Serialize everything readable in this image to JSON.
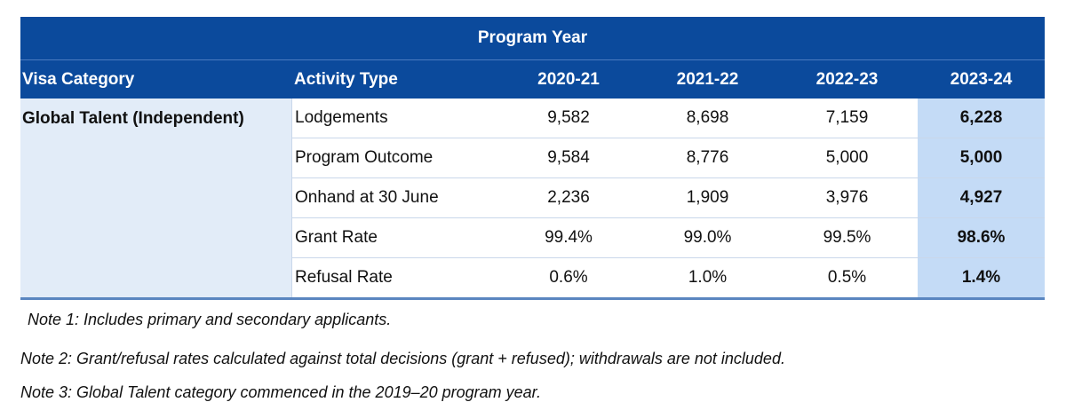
{
  "table": {
    "super_header": "Program Year",
    "headers": {
      "category": "Visa Category",
      "activity": "Activity Type",
      "years": [
        "2020-21",
        "2021-22",
        "2022-23",
        "2023-24"
      ]
    },
    "category": "Global Talent (Independent)",
    "rows": [
      {
        "activity": "Lodgements",
        "values": [
          "9,582",
          "8,698",
          "7,159",
          "6,228"
        ]
      },
      {
        "activity": "Program Outcome",
        "values": [
          "9,584",
          "8,776",
          "5,000",
          "5,000"
        ]
      },
      {
        "activity": "Onhand at 30 June",
        "values": [
          "2,236",
          "1,909",
          "3,976",
          "4,927"
        ]
      },
      {
        "activity": "Grant Rate",
        "values": [
          "99.4%",
          "99.0%",
          "99.5%",
          "98.6%"
        ]
      },
      {
        "activity": "Refusal Rate",
        "values": [
          "0.6%",
          "1.0%",
          "0.5%",
          "1.4%"
        ]
      }
    ],
    "colors": {
      "header_bg": "#0b4a9c",
      "category_bg": "#e2ecf8",
      "highlight_col_bg": "#c4dbf6"
    }
  },
  "notes": [
    "Note 1: Includes primary and secondary applicants.",
    "Note 2: Grant/refusal rates calculated against total decisions (grant + refused); withdrawals are not included.",
    "Note 3: Global Talent category commenced in the 2019–20 program year."
  ]
}
